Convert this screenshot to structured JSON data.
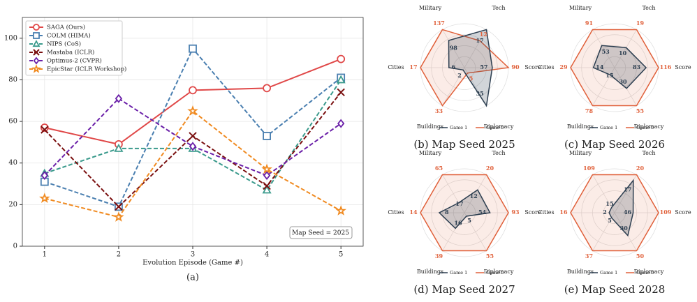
{
  "chart_data": [
    {
      "type": "line",
      "caption": "(a)",
      "xlabel": "Evolution Episode (Game #)",
      "annotation": "Map Seed = 2025",
      "x": [
        1,
        2,
        3,
        4,
        5
      ],
      "xlim": [
        0.7,
        5.3
      ],
      "ylim": [
        0,
        110
      ],
      "xticks": [
        1,
        2,
        3,
        4,
        5
      ],
      "yticks": [
        0,
        20,
        40,
        60,
        80,
        100
      ],
      "grid": true,
      "legend": "upper left",
      "series": [
        {
          "name": "SAGA (Ours)",
          "color": "#e04848",
          "linestyle": "solid",
          "marker": "circle",
          "values": [
            57,
            49,
            75,
            76,
            90
          ]
        },
        {
          "name": "COLM (HIMA)",
          "color": "#4a7fb0",
          "linestyle": "dashed",
          "marker": "square",
          "values": [
            31,
            19,
            95,
            53,
            81
          ]
        },
        {
          "name": "NIPS (CoS)",
          "color": "#3a9a8c",
          "linestyle": "dashed",
          "marker": "triangle",
          "values": [
            35,
            47,
            47,
            27,
            80
          ]
        },
        {
          "name": "Mastaba (ICLR)",
          "color": "#7a0f0f",
          "linestyle": "dashed",
          "marker": "x",
          "values": [
            56,
            19,
            53,
            29,
            74
          ]
        },
        {
          "name": "Optimus-2 (CVPR)",
          "color": "#6a1fa8",
          "linestyle": "dashed",
          "marker": "diamond",
          "values": [
            34,
            71,
            48,
            34,
            59
          ]
        },
        {
          "name": "EpicStar (ICLR Workshop)",
          "color": "#f08a20",
          "linestyle": "dashed",
          "marker": "star",
          "values": [
            23,
            14,
            65,
            37,
            17
          ]
        }
      ]
    },
    {
      "type": "radar",
      "caption": "(b) Map Seed 2025",
      "axes": [
        "Military",
        "Tech",
        "Score",
        "Diplomacy",
        "Buildings",
        "Cities"
      ],
      "series": [
        {
          "name": "Game 1",
          "color": "#2c3e50",
          "values": [
            98,
            17,
            57,
            35,
            2,
            6
          ]
        },
        {
          "name": "Game 5",
          "color": "#e0603a",
          "values": [
            137,
            12,
            90,
            5,
            33,
            17
          ]
        }
      ]
    },
    {
      "type": "radar",
      "caption": "(c) Map Seed 2026",
      "axes": [
        "Military",
        "Tech",
        "Score",
        "Diplomacy",
        "Buildings",
        "Cities"
      ],
      "series": [
        {
          "name": "Game 1",
          "color": "#2c3e50",
          "values": [
            53,
            10,
            83,
            30,
            15,
            14
          ]
        },
        {
          "name": "Game 5",
          "color": "#e0603a",
          "values": [
            91,
            19,
            116,
            55,
            78,
            29
          ]
        }
      ]
    },
    {
      "type": "radar",
      "caption": "(d) Map Seed 2027",
      "axes": [
        "Military",
        "Tech",
        "Score",
        "Diplomacy",
        "Buildings",
        "Cities"
      ],
      "series": [
        {
          "name": "Game 1",
          "color": "#2c3e50",
          "values": [
            17,
            12,
            54,
            5,
            16,
            8
          ]
        },
        {
          "name": "Game 5",
          "color": "#e0603a",
          "values": [
            65,
            20,
            93,
            55,
            39,
            14
          ]
        }
      ]
    },
    {
      "type": "radar",
      "caption": "(e) Map Seed 2028",
      "axes": [
        "Military",
        "Tech",
        "Score",
        "Diplomacy",
        "Buildings",
        "Cities"
      ],
      "series": [
        {
          "name": "Game 1",
          "color": "#2c3e50",
          "values": [
            15,
            17,
            46,
            30,
            5,
            2
          ]
        },
        {
          "name": "Game 5",
          "color": "#e0603a",
          "values": [
            109,
            20,
            109,
            50,
            37,
            16
          ]
        }
      ]
    }
  ]
}
